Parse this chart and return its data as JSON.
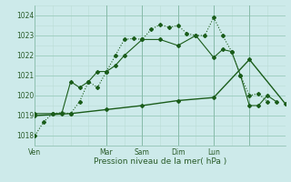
{
  "title": "",
  "xlabel": "Pression niveau de la mer( hPa )",
  "bg_color": "#cdeaea",
  "grid_color_major": "#99ccbb",
  "grid_color_minor": "#bbddd5",
  "line_color": "#1a5c1a",
  "ylim": [
    1017.5,
    1024.5
  ],
  "xlim": [
    0,
    84
  ],
  "xtick_positions": [
    0,
    24,
    36,
    48,
    60,
    72
  ],
  "xtick_labels": [
    "Ven",
    "Mar",
    "Sam",
    "Dim",
    "Lun",
    ""
  ],
  "ytick_positions": [
    1018,
    1019,
    1020,
    1021,
    1022,
    1023,
    1024
  ],
  "ytick_labels": [
    "1018",
    "1019",
    "1020",
    "1021",
    "1022",
    "1023",
    "1024"
  ],
  "vline_positions": [
    24,
    36,
    48,
    60,
    72
  ],
  "series1_x": [
    0,
    3,
    6,
    9,
    12,
    15,
    18,
    21,
    24,
    27,
    30,
    33,
    36,
    39,
    42,
    45,
    48,
    51,
    54,
    57,
    60,
    63,
    66,
    69,
    72,
    75,
    78
  ],
  "series1_y": [
    1018.0,
    1018.7,
    1019.1,
    1019.15,
    1019.1,
    1019.7,
    1020.7,
    1020.4,
    1021.2,
    1022.0,
    1022.8,
    1022.85,
    1022.8,
    1023.3,
    1023.55,
    1023.4,
    1023.5,
    1023.1,
    1023.0,
    1023.0,
    1023.9,
    1023.0,
    1022.2,
    1021.0,
    1020.0,
    1020.1,
    1019.7
  ],
  "series2_x": [
    0,
    6,
    9,
    12,
    15,
    18,
    21,
    24,
    27,
    30,
    36,
    42,
    48,
    54,
    60,
    63,
    66,
    69,
    72,
    75,
    78,
    81
  ],
  "series2_y": [
    1019.1,
    1019.1,
    1019.1,
    1020.7,
    1020.4,
    1020.7,
    1021.2,
    1021.2,
    1021.5,
    1022.0,
    1022.8,
    1022.8,
    1022.5,
    1023.0,
    1021.9,
    1022.3,
    1022.2,
    1021.0,
    1019.5,
    1019.5,
    1020.0,
    1019.7
  ],
  "series3_x": [
    0,
    12,
    24,
    36,
    48,
    60,
    72,
    84
  ],
  "series3_y": [
    1019.0,
    1019.1,
    1019.3,
    1019.5,
    1019.75,
    1019.9,
    1021.8,
    1019.6
  ]
}
